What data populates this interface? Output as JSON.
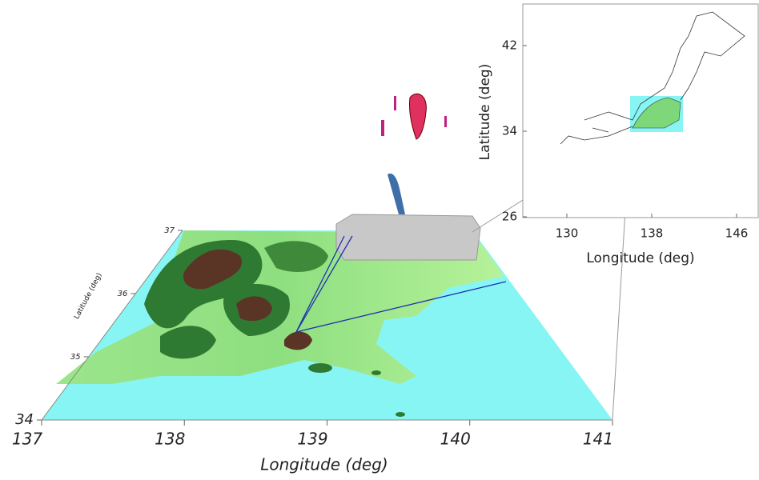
{
  "main": {
    "xlabel": "Longitude (deg)",
    "xticks": [
      137,
      138,
      139,
      140,
      141
    ],
    "ylabel": "Latitude (deg)",
    "yticks": [
      34,
      35,
      36,
      37
    ]
  },
  "inset": {
    "xlabel": "Longitude (deg)",
    "xticks": [
      130,
      138,
      146
    ],
    "ylabel": "Latitude (deg)",
    "yticks": [
      42,
      34,
      26
    ]
  }
}
